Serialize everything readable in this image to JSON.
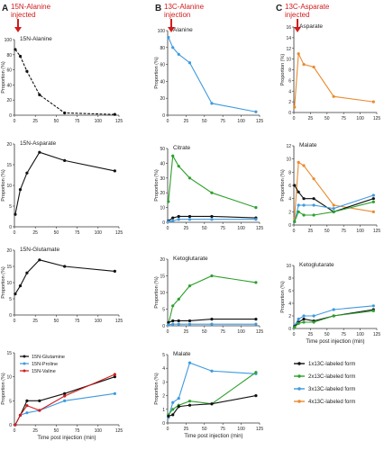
{
  "panels": [
    {
      "letter": "A",
      "inj_text": [
        "15N-Alanine",
        "injected"
      ]
    },
    {
      "letter": "B",
      "inj_text": [
        "13C-Alanine",
        "injection"
      ]
    },
    {
      "letter": "C",
      "inj_text": [
        "13C-Asparate",
        "injected"
      ]
    }
  ],
  "colors": {
    "black": "#111111",
    "green": "#2ca02c",
    "blue": "#3d9ae0",
    "orange": "#ea8a2e",
    "red": "#d01c1c",
    "axis": "#333333"
  },
  "legend_D": [
    "15N-Glutamine",
    "15N-Proline",
    "15N-Valine"
  ],
  "legend_bottom": [
    "1x13C-labeled form",
    "2x13C-labeled form",
    "3x13C-labeled form",
    "4x13C-labeled form"
  ],
  "chart_data": [
    {
      "type": "line",
      "title": "15N-Alanine",
      "ylabel": "Proportion (%)",
      "xlabel": "",
      "x_ticks": [
        0,
        25,
        50,
        75,
        100,
        125
      ],
      "y_ticks": [
        0,
        20,
        40,
        60,
        80,
        100
      ],
      "xlim": [
        0,
        125
      ],
      "ylim": [
        0,
        100
      ],
      "series": [
        {
          "color": "black",
          "x": [
            1,
            7,
            15,
            30,
            60,
            120
          ],
          "y": [
            87,
            78,
            58,
            27,
            3,
            1
          ]
        }
      ]
    },
    {
      "type": "line",
      "title": "15N-Asparate",
      "ylabel": "Proportion (%)",
      "xlabel": "",
      "x_ticks": [
        0,
        25,
        50,
        75,
        100,
        125
      ],
      "y_ticks": [
        0,
        5,
        10,
        15,
        20
      ],
      "xlim": [
        0,
        125
      ],
      "ylim": [
        0,
        20
      ],
      "series": [
        {
          "color": "black",
          "x": [
            1,
            7,
            15,
            30,
            60,
            120
          ],
          "y": [
            3,
            9,
            13,
            18,
            16,
            13.5
          ]
        }
      ]
    },
    {
      "type": "line",
      "title": "15N-Glutamate",
      "ylabel": "Proportion (%)",
      "xlabel": "",
      "x_ticks": [
        0,
        25,
        50,
        75,
        100,
        125
      ],
      "y_ticks": [
        0,
        5,
        10,
        15,
        20
      ],
      "xlim": [
        0,
        125
      ],
      "ylim": [
        0,
        20
      ],
      "series": [
        {
          "color": "black",
          "x": [
            1,
            7,
            15,
            30,
            60,
            120
          ],
          "y": [
            6.5,
            9,
            13,
            17,
            15,
            13.5
          ]
        }
      ]
    },
    {
      "type": "line",
      "title": "",
      "ylabel": "Proportion (%)",
      "xlabel": "Time post injection (min)",
      "x_ticks": [
        0,
        25,
        50,
        75,
        100,
        125
      ],
      "y_ticks": [
        0,
        5,
        10,
        15
      ],
      "xlim": [
        0,
        125
      ],
      "ylim": [
        0,
        15
      ],
      "series": [
        {
          "color": "black",
          "name": "15N-Glutamine",
          "x": [
            1,
            7,
            15,
            30,
            60,
            120
          ],
          "y": [
            0,
            2,
            5,
            5,
            6.5,
            10
          ]
        },
        {
          "color": "blue",
          "name": "15N-Proline",
          "x": [
            1,
            7,
            15,
            30,
            60,
            120
          ],
          "y": [
            0,
            2,
            2.5,
            3,
            5,
            6.5
          ]
        },
        {
          "color": "red",
          "name": "15N-Valine",
          "x": [
            1,
            7,
            15,
            30,
            60,
            120
          ],
          "y": [
            0,
            2,
            4,
            3,
            6,
            10.5
          ]
        }
      ]
    },
    {
      "type": "line",
      "title": "Alanine",
      "ylabel": "Proportion (%)",
      "xlabel": "",
      "x_ticks": [
        0,
        25,
        50,
        75,
        100,
        125
      ],
      "y_ticks": [
        0,
        20,
        40,
        60,
        80,
        100
      ],
      "xlim": [
        0,
        125
      ],
      "ylim": [
        0,
        100
      ],
      "series": [
        {
          "color": "blue",
          "x": [
            1,
            7,
            15,
            30,
            60,
            120
          ],
          "y": [
            92,
            80,
            72,
            62,
            14,
            4
          ]
        }
      ]
    },
    {
      "type": "line",
      "title": "Citrate",
      "ylabel": "Proportion (%)",
      "xlabel": "",
      "x_ticks": [
        0,
        25,
        50,
        75,
        100,
        125
      ],
      "y_ticks": [
        0,
        10,
        20,
        30,
        40,
        50
      ],
      "xlim": [
        0,
        125
      ],
      "ylim": [
        0,
        50
      ],
      "series": [
        {
          "color": "green",
          "x": [
            1,
            7,
            15,
            30,
            60,
            120
          ],
          "y": [
            14,
            45,
            38,
            30,
            20,
            10
          ]
        },
        {
          "color": "black",
          "x": [
            1,
            7,
            15,
            30,
            60,
            120
          ],
          "y": [
            1,
            3,
            4,
            4,
            4,
            3
          ]
        },
        {
          "color": "blue",
          "x": [
            1,
            7,
            15,
            30,
            60,
            120
          ],
          "y": [
            0.5,
            1,
            2,
            2,
            2,
            2
          ]
        }
      ]
    },
    {
      "type": "line",
      "title": "Ketoglutarate",
      "ylabel": "Proportion (%)",
      "xlabel": "",
      "x_ticks": [
        0,
        25,
        50,
        75,
        100,
        125
      ],
      "y_ticks": [
        0,
        5,
        10,
        15,
        20
      ],
      "xlim": [
        0,
        125
      ],
      "ylim": [
        0,
        20
      ],
      "series": [
        {
          "color": "green",
          "x": [
            1,
            7,
            15,
            30,
            60,
            120
          ],
          "y": [
            0.5,
            6,
            8,
            12,
            15,
            13
          ]
        },
        {
          "color": "black",
          "x": [
            1,
            7,
            15,
            30,
            60,
            120
          ],
          "y": [
            1,
            1.5,
            1.5,
            1.5,
            2,
            2
          ]
        },
        {
          "color": "blue",
          "x": [
            1,
            7,
            15,
            30,
            60,
            120
          ],
          "y": [
            0.3,
            0.5,
            0.5,
            0.5,
            0.5,
            0.5
          ]
        }
      ]
    },
    {
      "type": "line",
      "title": "Malate",
      "ylabel": "Proportion (%)",
      "xlabel": "Time post injection (min)",
      "x_ticks": [
        0,
        25,
        50,
        75,
        100,
        125
      ],
      "y_ticks": [
        0,
        1,
        2,
        3,
        4,
        5
      ],
      "xlim": [
        0,
        125
      ],
      "ylim": [
        0,
        5
      ],
      "series": [
        {
          "color": "blue",
          "x": [
            1,
            7,
            15,
            30,
            60,
            120
          ],
          "y": [
            0.4,
            1.5,
            1.8,
            4.4,
            3.8,
            3.6
          ]
        },
        {
          "color": "green",
          "x": [
            1,
            7,
            15,
            30,
            60,
            120
          ],
          "y": [
            0.6,
            1,
            1.3,
            1.6,
            1.4,
            3.7
          ]
        },
        {
          "color": "black",
          "x": [
            1,
            7,
            15,
            30,
            60,
            120
          ],
          "y": [
            0.5,
            0.6,
            1.2,
            1.3,
            1.4,
            2
          ]
        }
      ]
    },
    {
      "type": "line",
      "title": "Asparate",
      "ylabel": "Proportion (%)",
      "xlabel": "",
      "x_ticks": [
        0,
        25,
        50,
        75,
        100,
        125
      ],
      "y_ticks": [
        0,
        2,
        4,
        6,
        8,
        10,
        12,
        14,
        16
      ],
      "xlim": [
        0,
        125
      ],
      "ylim": [
        0,
        16
      ],
      "series": [
        {
          "color": "orange",
          "x": [
            1,
            7,
            15,
            30,
            60,
            120
          ],
          "y": [
            1,
            11,
            9,
            8.5,
            3,
            2
          ]
        }
      ]
    },
    {
      "type": "line",
      "title": "Malate",
      "ylabel": "Proportion (%)",
      "xlabel": "",
      "x_ticks": [
        0,
        25,
        50,
        75,
        100,
        125
      ],
      "y_ticks": [
        0,
        2,
        4,
        6,
        8,
        10,
        12
      ],
      "xlim": [
        0,
        125
      ],
      "ylim": [
        0,
        12
      ],
      "series": [
        {
          "color": "orange",
          "x": [
            1,
            7,
            15,
            30,
            60,
            120
          ],
          "y": [
            1,
            9.5,
            9,
            7,
            3,
            2
          ]
        },
        {
          "color": "black",
          "x": [
            1,
            7,
            15,
            30,
            60,
            120
          ],
          "y": [
            6,
            5,
            4,
            4,
            2,
            4
          ]
        },
        {
          "color": "blue",
          "x": [
            1,
            7,
            15,
            30,
            60,
            120
          ],
          "y": [
            0.5,
            3,
            3,
            3,
            2.5,
            4.5
          ]
        },
        {
          "color": "green",
          "x": [
            1,
            7,
            15,
            30,
            60,
            120
          ],
          "y": [
            0.5,
            2,
            1.5,
            1.5,
            2,
            3.5
          ]
        }
      ]
    },
    {
      "type": "line",
      "title": "Ketoglutarate",
      "ylabel": "Proportion (%)",
      "xlabel": "Time post injection (min)",
      "x_ticks": [
        0,
        25,
        50,
        75,
        100,
        125
      ],
      "y_ticks": [
        0,
        2,
        4,
        6,
        8,
        10
      ],
      "xlim": [
        0,
        125
      ],
      "ylim": [
        0,
        10
      ],
      "series": [
        {
          "color": "blue",
          "x": [
            1,
            7,
            15,
            30,
            60,
            120
          ],
          "y": [
            0.5,
            1.5,
            2,
            2,
            3,
            3.6
          ]
        },
        {
          "color": "black",
          "x": [
            1,
            7,
            15,
            30,
            60,
            120
          ],
          "y": [
            0.3,
            1,
            1.5,
            1.2,
            2,
            3
          ]
        },
        {
          "color": "green",
          "x": [
            1,
            7,
            15,
            30,
            60,
            120
          ],
          "y": [
            0.2,
            0.8,
            1,
            1,
            2,
            2.8
          ]
        }
      ]
    }
  ]
}
